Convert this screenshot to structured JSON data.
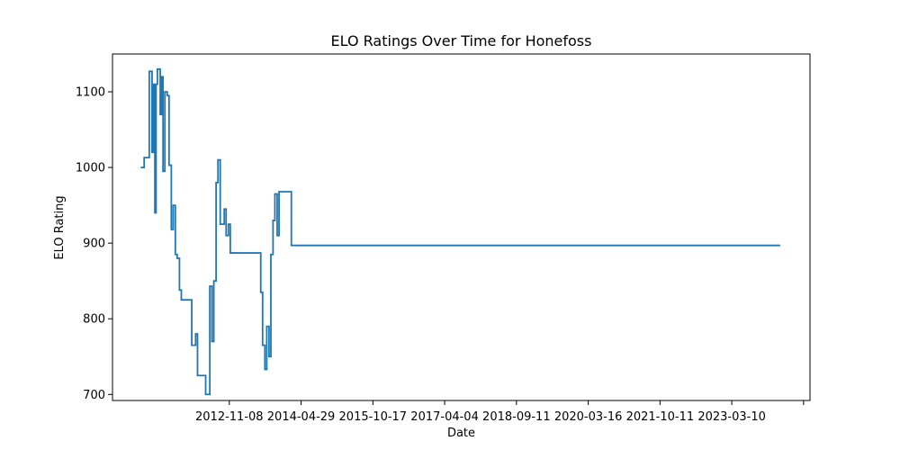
{
  "chart_data": {
    "type": "line",
    "title": "ELO Ratings Over Time for Honefoss",
    "xlabel": "Date",
    "ylabel": "ELO Rating",
    "x_ticks": [
      "2012-11-08",
      "2014-04-29",
      "2015-10-17",
      "2017-04-04",
      "2018-09-11",
      "2020-03-16",
      "2021-10-11",
      "2023-03-10",
      ""
    ],
    "y_ticks": [
      700,
      800,
      900,
      1000,
      1100
    ],
    "ylim": [
      692,
      1150
    ],
    "xlim": [
      "2010-06-18",
      "2024-09-30"
    ],
    "grid": false,
    "legend": "none",
    "color": "#1f77b4",
    "series": [
      {
        "x": [
          "2011-01-15",
          "2011-02-10",
          "2011-03-20",
          "2011-04-10",
          "2011-04-20",
          "2011-05-01",
          "2011-05-10",
          "2011-05-20",
          "2011-06-01",
          "2011-06-10",
          "2011-06-20",
          "2011-07-01",
          "2011-07-15",
          "2011-08-01",
          "2011-08-15",
          "2011-09-01",
          "2011-09-15",
          "2011-10-01",
          "2011-10-15",
          "2011-11-01",
          "2011-11-15",
          "2012-02-01",
          "2012-03-01",
          "2012-03-15",
          "2012-04-01",
          "2012-04-15",
          "2012-05-01",
          "2012-05-15",
          "2012-06-01",
          "2012-06-15",
          "2012-07-01",
          "2012-07-15",
          "2012-08-01",
          "2012-08-15",
          "2012-09-01",
          "2012-09-15",
          "2012-10-01",
          "2012-10-15",
          "2012-11-01",
          "2012-11-15",
          "2013-07-01",
          "2013-07-15",
          "2013-08-01",
          "2013-08-15",
          "2013-09-01",
          "2013-09-15",
          "2013-10-01",
          "2013-10-15",
          "2013-11-01",
          "2013-11-15",
          "2014-02-15",
          "2014-03-01",
          "2014-03-15",
          "2014-04-01",
          "2014-04-15",
          "2014-05-01",
          "2014-05-15",
          "2014-06-01",
          "2014-06-15",
          "2014-07-01",
          "2014-07-15",
          "2014-08-01",
          "2014-08-15",
          "2014-09-01",
          "2014-09-15",
          "2014-10-01",
          "2014-10-15",
          "2014-11-01",
          "2014-11-15",
          "2024-02-20"
        ],
        "y": [
          1000,
          1013,
          1127,
          1020,
          1110,
          940,
          1110,
          1130,
          1130,
          1070,
          1120,
          995,
          1100,
          1095,
          1003,
          918,
          950,
          885,
          880,
          838,
          825,
          765,
          780,
          725,
          725,
          725,
          725,
          700,
          700,
          843,
          770,
          850,
          980,
          1010,
          925,
          925,
          945,
          910,
          925,
          887,
          835,
          765,
          733,
          790,
          750,
          885,
          930,
          965,
          910,
          968,
          897,
          897,
          897,
          897,
          897,
          897,
          897,
          897,
          897,
          897,
          897,
          897,
          897,
          897,
          897,
          897,
          897,
          897,
          897,
          897
        ]
      }
    ]
  }
}
